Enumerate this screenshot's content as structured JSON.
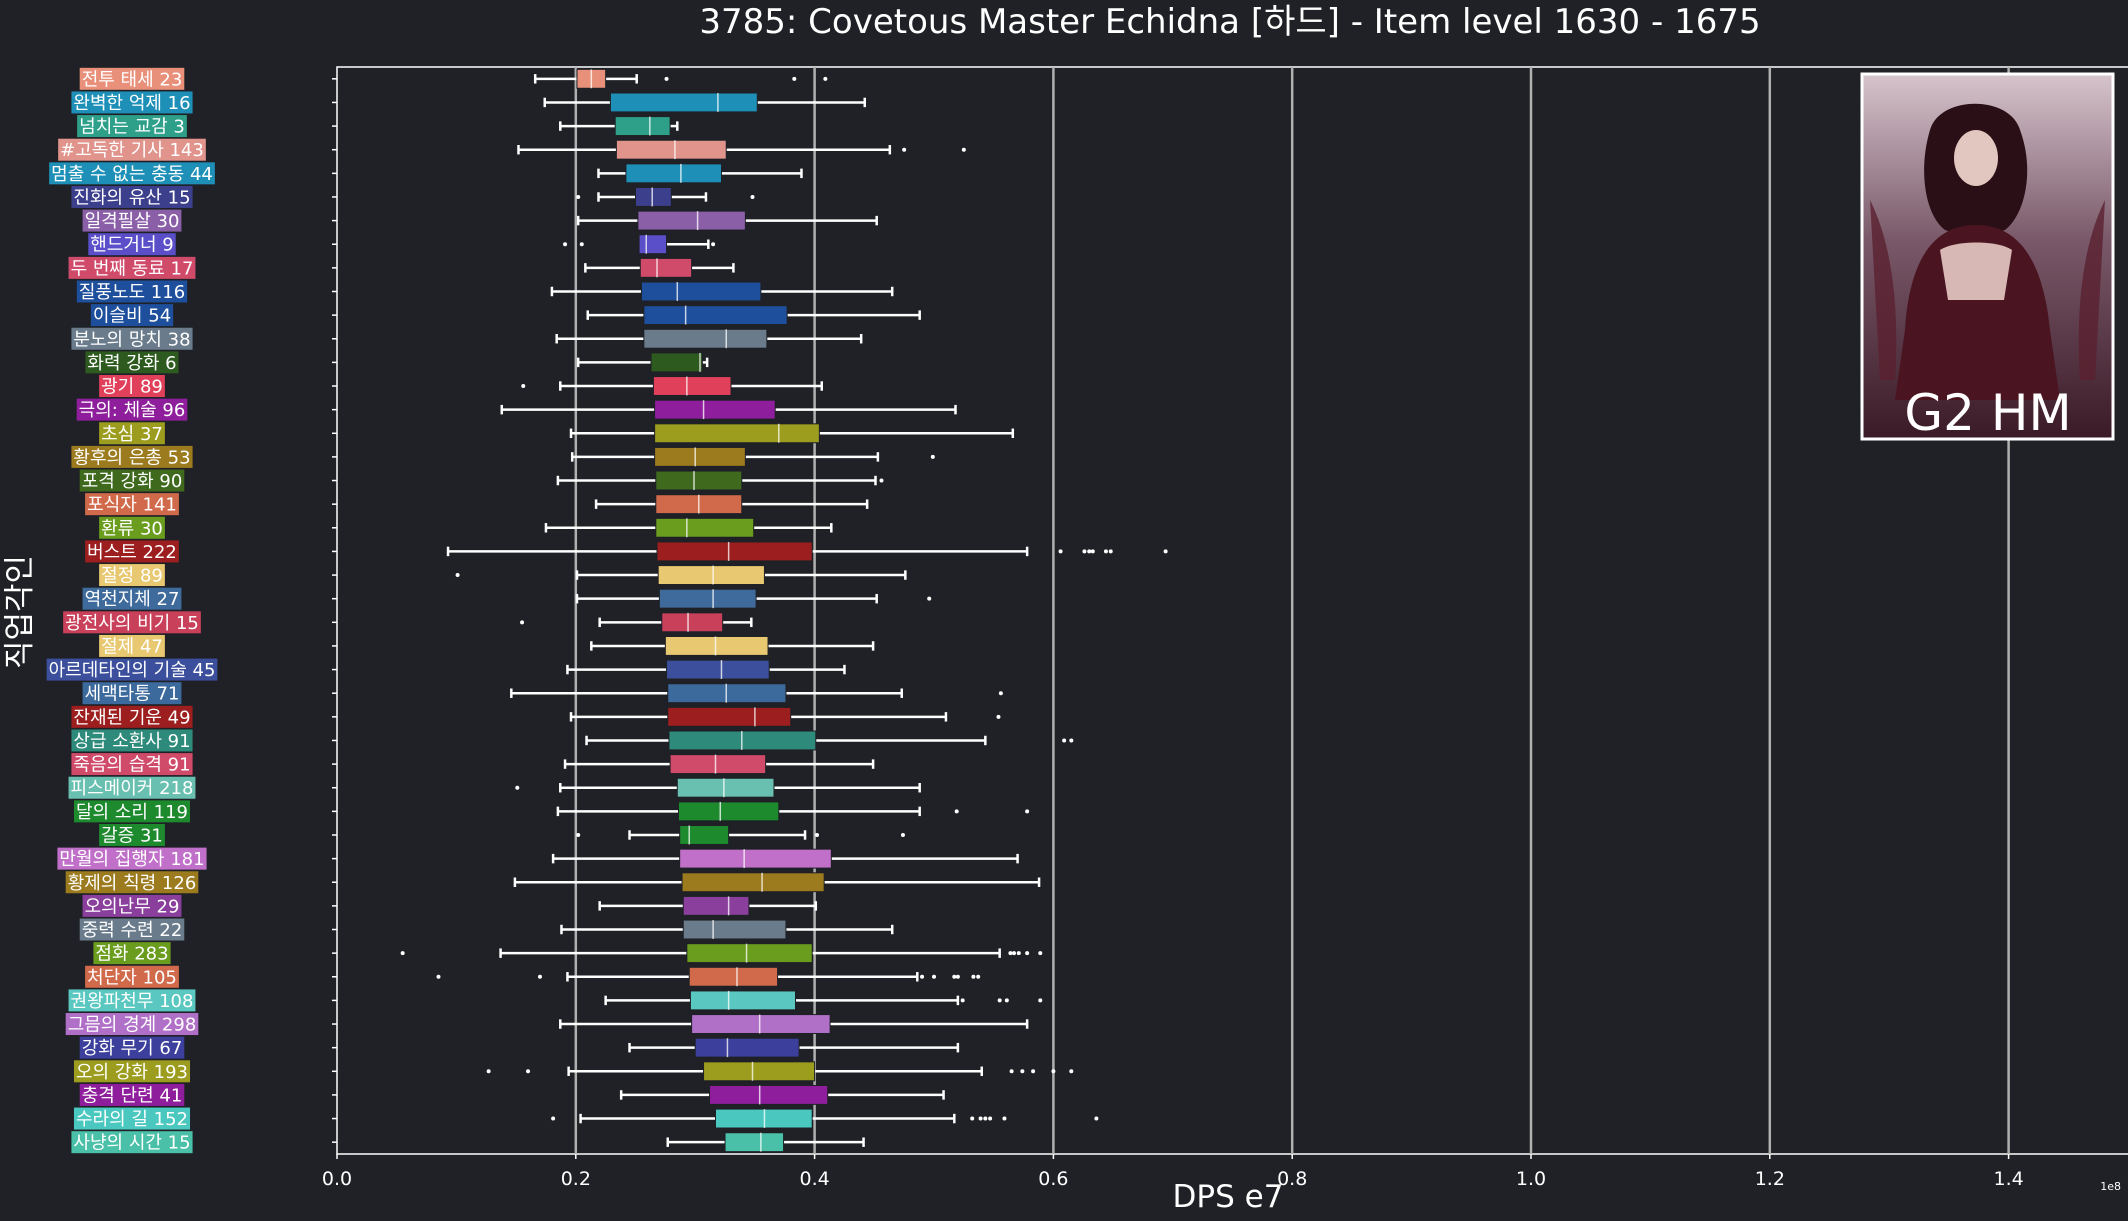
{
  "chart_data": {
    "type": "box",
    "title": "3785: Covetous Master Echidna [하드] - Item level 1630 - 1675",
    "xlabel": "DPS e7",
    "ylabel": "직업각인",
    "x_offset_text": "1e8",
    "xlim": [
      0,
      1.5
    ],
    "x_ticks": [
      "0.0",
      "0.2",
      "0.4",
      "0.6",
      "0.8",
      "1.0",
      "1.2",
      "1.4"
    ],
    "badge": "G2 HM",
    "grid": "vertical at 0.2 steps",
    "categories": [
      {
        "name": "전투 태세 23",
        "color": "#e8907a",
        "box": [
          0.201,
          0.213,
          0.225
        ],
        "whisker": [
          0.166,
          0.251
        ],
        "fliers": [
          0.276,
          0.383,
          0.409
        ]
      },
      {
        "name": "완벽한 억제 16",
        "color": "#1e90b8",
        "box": [
          0.229,
          0.319,
          0.352
        ],
        "whisker": [
          0.174,
          0.442
        ],
        "fliers": []
      },
      {
        "name": "넘치는 교감 3",
        "color": "#2ea08a",
        "box": [
          0.233,
          0.262,
          0.279
        ],
        "whisker": [
          0.187,
          0.285
        ],
        "fliers": []
      },
      {
        "name": "#고독한 기사 143",
        "color": "#e0948c",
        "box": [
          0.234,
          0.283,
          0.326
        ],
        "whisker": [
          0.152,
          0.463
        ],
        "fliers": [
          0.475,
          0.525
        ]
      },
      {
        "name": "멈출 수 없는 충동 44",
        "color": "#1e90b8",
        "box": [
          0.242,
          0.288,
          0.322
        ],
        "whisker": [
          0.219,
          0.389
        ],
        "fliers": []
      },
      {
        "name": "진화의 유산 15",
        "color": "#3c3f8c",
        "box": [
          0.25,
          0.264,
          0.28
        ],
        "whisker": [
          0.219,
          0.309
        ],
        "fliers": [
          0.202,
          0.348
        ]
      },
      {
        "name": "일격필살 30",
        "color": "#8a5fa8",
        "box": [
          0.252,
          0.302,
          0.342
        ],
        "whisker": [
          0.202,
          0.452
        ],
        "fliers": []
      },
      {
        "name": "핸드거너 9",
        "color": "#5a4fc8",
        "box": [
          0.253,
          0.259,
          0.276
        ],
        "whisker": [
          0.258,
          0.311
        ],
        "fliers": [
          0.191,
          0.205,
          0.315
        ]
      },
      {
        "name": "두 번째 동료 17",
        "color": "#d04a6a",
        "box": [
          0.254,
          0.268,
          0.297
        ],
        "whisker": [
          0.208,
          0.332
        ],
        "fliers": []
      },
      {
        "name": "질풍노도 116",
        "color": "#1e4f9c",
        "box": [
          0.255,
          0.285,
          0.355
        ],
        "whisker": [
          0.18,
          0.465
        ],
        "fliers": []
      },
      {
        "name": "이슬비 54",
        "color": "#1e4f9c",
        "box": [
          0.257,
          0.292,
          0.377
        ],
        "whisker": [
          0.21,
          0.488
        ],
        "fliers": []
      },
      {
        "name": "분노의 망치 38",
        "color": "#6a7c8c",
        "box": [
          0.257,
          0.326,
          0.36
        ],
        "whisker": [
          0.184,
          0.439
        ],
        "fliers": []
      },
      {
        "name": "화력 강화 6",
        "color": "#2d5a1e",
        "box": [
          0.263,
          0.304,
          0.306
        ],
        "whisker": [
          0.202,
          0.31
        ],
        "fliers": []
      },
      {
        "name": "광기 89",
        "color": "#e0405a",
        "box": [
          0.265,
          0.293,
          0.33
        ],
        "whisker": [
          0.187,
          0.406
        ],
        "fliers": [
          0.156
        ]
      },
      {
        "name": "극의: 체술 96",
        "color": "#8e1e9c",
        "box": [
          0.266,
          0.307,
          0.367
        ],
        "whisker": [
          0.138,
          0.518
        ],
        "fliers": []
      },
      {
        "name": "초심 37",
        "color": "#9c9c1e",
        "box": [
          0.266,
          0.37,
          0.404
        ],
        "whisker": [
          0.196,
          0.566
        ],
        "fliers": []
      },
      {
        "name": "황후의 은총 53",
        "color": "#9c7a1e",
        "box": [
          0.266,
          0.3,
          0.342
        ],
        "whisker": [
          0.197,
          0.453
        ],
        "fliers": [
          0.499
        ]
      },
      {
        "name": "포격 강화 90",
        "color": "#3f6a1e",
        "box": [
          0.267,
          0.299,
          0.339
        ],
        "whisker": [
          0.185,
          0.451
        ],
        "fliers": [
          0.456
        ]
      },
      {
        "name": "포식자 141",
        "color": "#d06a4a",
        "box": [
          0.267,
          0.303,
          0.339
        ],
        "whisker": [
          0.217,
          0.444
        ],
        "fliers": []
      },
      {
        "name": "환류 30",
        "color": "#6a9c1e",
        "box": [
          0.267,
          0.293,
          0.349
        ],
        "whisker": [
          0.175,
          0.414
        ],
        "fliers": []
      },
      {
        "name": "버스트 222",
        "color": "#9c1e1e",
        "box": [
          0.268,
          0.328,
          0.398
        ],
        "whisker": [
          0.093,
          0.578
        ],
        "fliers": [
          0.606,
          0.626,
          0.63,
          0.633,
          0.644,
          0.648,
          0.694
        ]
      },
      {
        "name": "절정 89",
        "color": "#e8c870",
        "box": [
          0.269,
          0.315,
          0.358
        ],
        "whisker": [
          0.201,
          0.476
        ],
        "fliers": [
          0.101
        ]
      },
      {
        "name": "역천지체 27",
        "color": "#3f6a9c",
        "box": [
          0.27,
          0.315,
          0.351
        ],
        "whisker": [
          0.201,
          0.452
        ],
        "fliers": [
          0.496
        ]
      },
      {
        "name": "광전사의 비기 15",
        "color": "#c8405a",
        "box": [
          0.272,
          0.294,
          0.323
        ],
        "whisker": [
          0.22,
          0.347
        ],
        "fliers": [
          0.155
        ]
      },
      {
        "name": "절제 47",
        "color": "#e8c870",
        "box": [
          0.275,
          0.317,
          0.361
        ],
        "whisker": [
          0.213,
          0.449
        ],
        "fliers": []
      },
      {
        "name": "아르데타인의 기술 45",
        "color": "#3c4f9c",
        "box": [
          0.276,
          0.322,
          0.362
        ],
        "whisker": [
          0.193,
          0.425
        ],
        "fliers": []
      },
      {
        "name": "세맥타통 71",
        "color": "#3c6a9c",
        "box": [
          0.277,
          0.326,
          0.376
        ],
        "whisker": [
          0.146,
          0.473
        ],
        "fliers": [
          0.556
        ]
      },
      {
        "name": "잔재된 기운 49",
        "color": "#9c1e1e",
        "box": [
          0.277,
          0.35,
          0.38
        ],
        "whisker": [
          0.196,
          0.51
        ],
        "fliers": [
          0.554
        ]
      },
      {
        "name": "상급 소환사 91",
        "color": "#2e8a7a",
        "box": [
          0.278,
          0.339,
          0.401
        ],
        "whisker": [
          0.209,
          0.543
        ],
        "fliers": [
          0.609,
          0.615
        ]
      },
      {
        "name": "죽음의 습격 91",
        "color": "#d04a6a",
        "box": [
          0.279,
          0.317,
          0.359
        ],
        "whisker": [
          0.191,
          0.449
        ],
        "fliers": []
      },
      {
        "name": "피스메이커 218",
        "color": "#6ac0b0",
        "box": [
          0.285,
          0.324,
          0.366
        ],
        "whisker": [
          0.187,
          0.488
        ],
        "fliers": [
          0.151
        ]
      },
      {
        "name": "달의 소리 119",
        "color": "#1e8a2e",
        "box": [
          0.286,
          0.321,
          0.37
        ],
        "whisker": [
          0.185,
          0.488
        ],
        "fliers": [
          0.519,
          0.578
        ]
      },
      {
        "name": "갈증 31",
        "color": "#1e8a2e",
        "box": [
          0.287,
          0.295,
          0.328
        ],
        "whisker": [
          0.245,
          0.392
        ],
        "fliers": [
          0.202,
          0.402,
          0.474
        ]
      },
      {
        "name": "만월의 집행자 181",
        "color": "#c070c8",
        "box": [
          0.287,
          0.341,
          0.414
        ],
        "whisker": [
          0.181,
          0.57
        ],
        "fliers": []
      },
      {
        "name": "황제의 칙령 126",
        "color": "#9c7a1e",
        "box": [
          0.289,
          0.356,
          0.408
        ],
        "whisker": [
          0.149,
          0.588
        ],
        "fliers": []
      },
      {
        "name": "오의난무 29",
        "color": "#8a3f9c",
        "box": [
          0.29,
          0.328,
          0.345
        ],
        "whisker": [
          0.22,
          0.401
        ],
        "fliers": []
      },
      {
        "name": "중력 수련 22",
        "color": "#6a7c8c",
        "box": [
          0.29,
          0.315,
          0.376
        ],
        "whisker": [
          0.188,
          0.465
        ],
        "fliers": []
      },
      {
        "name": "점화 283",
        "color": "#6a9c1e",
        "box": [
          0.293,
          0.343,
          0.398
        ],
        "whisker": [
          0.137,
          0.555
        ],
        "fliers": [
          0.055,
          0.564,
          0.567,
          0.571,
          0.578,
          0.589
        ]
      },
      {
        "name": "처단자 105",
        "color": "#d06a4a",
        "box": [
          0.295,
          0.335,
          0.369
        ],
        "whisker": [
          0.193,
          0.486
        ],
        "fliers": [
          0.085,
          0.17,
          0.49,
          0.5,
          0.517,
          0.52,
          0.533,
          0.537
        ]
      },
      {
        "name": "권왕파천무 108",
        "color": "#5ac8c0",
        "box": [
          0.296,
          0.328,
          0.384
        ],
        "whisker": [
          0.225,
          0.52
        ],
        "fliers": [
          0.524,
          0.555,
          0.561,
          0.589
        ]
      },
      {
        "name": "그믐의 경계 298",
        "color": "#b070c8",
        "box": [
          0.297,
          0.354,
          0.413
        ],
        "whisker": [
          0.187,
          0.578
        ],
        "fliers": []
      },
      {
        "name": "강화 무기 67",
        "color": "#3c3f9c",
        "box": [
          0.3,
          0.327,
          0.387
        ],
        "whisker": [
          0.245,
          0.52
        ],
        "fliers": []
      },
      {
        "name": "오의 강화 193",
        "color": "#9c9c1e",
        "box": [
          0.307,
          0.348,
          0.4
        ],
        "whisker": [
          0.194,
          0.54
        ],
        "fliers": [
          0.127,
          0.16,
          0.565,
          0.574,
          0.583,
          0.6,
          0.615
        ]
      },
      {
        "name": "충격 단련 41",
        "color": "#8e1e9c",
        "box": [
          0.312,
          0.354,
          0.411
        ],
        "whisker": [
          0.238,
          0.508
        ],
        "fliers": []
      },
      {
        "name": "수라의 길 152",
        "color": "#4ac8c0",
        "box": [
          0.317,
          0.358,
          0.398
        ],
        "whisker": [
          0.204,
          0.517
        ],
        "fliers": [
          0.181,
          0.532,
          0.539,
          0.543,
          0.547,
          0.559,
          0.636
        ]
      },
      {
        "name": "사냥의 시간 15",
        "color": "#4ac0a8",
        "box": [
          0.325,
          0.355,
          0.374
        ],
        "whisker": [
          0.277,
          0.441
        ],
        "fliers": []
      }
    ]
  }
}
